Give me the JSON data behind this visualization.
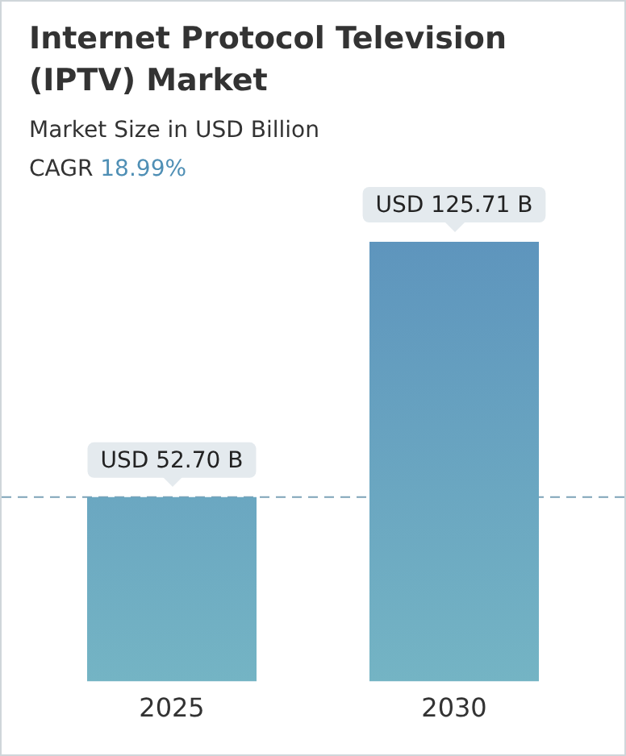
{
  "chart_data": {
    "type": "bar",
    "title": "Internet Protocol Television (IPTV) Market",
    "subtitle": "Market Size in USD Billion",
    "annotations": [
      "CAGR 18.99%"
    ],
    "categories": [
      "2025",
      "2030"
    ],
    "values": [
      52.7,
      125.71
    ],
    "value_labels": [
      "USD 52.70 B",
      "USD 125.71 B"
    ],
    "color": "#5e95bd",
    "ref_lines": [
      {
        "axis": "y",
        "value": 52.7,
        "color": "#7ea3b8",
        "line_style": "dashed"
      }
    ],
    "grid": false,
    "legend": false
  }
}
